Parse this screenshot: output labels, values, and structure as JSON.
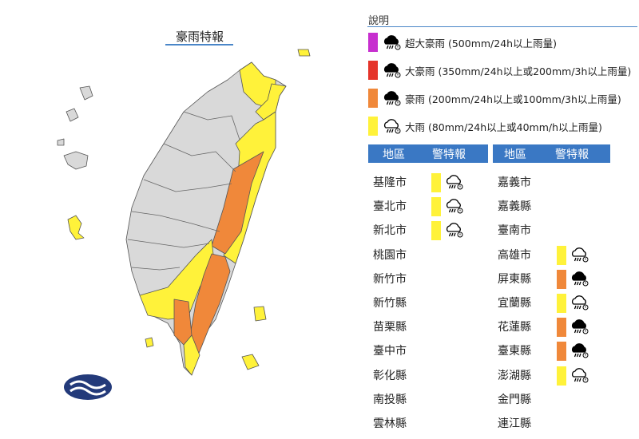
{
  "map": {
    "title": "豪雨特報"
  },
  "colors": {
    "super_torrential": "#c72fcf",
    "extremely_heavy": "#e5342a",
    "heavy_torrential": "#f0883a",
    "heavy_rain": "#fff23a",
    "unaffected": "#d9d9d9",
    "header": "#3a78c4"
  },
  "legend": {
    "title": "說明",
    "items": [
      {
        "level": "super_torrential",
        "icon": "filled-rain-cloud-icon",
        "label": "超大豪雨 (500mm/24h以上雨量)"
      },
      {
        "level": "extremely_heavy",
        "icon": "filled-rain-cloud-icon",
        "label": "大豪雨 (350mm/24h以上或200mm/3h以上雨量)"
      },
      {
        "level": "heavy_torrential",
        "icon": "filled-rain-cloud-icon",
        "label": "豪雨 (200mm/24h以上或100mm/3h以上雨量)"
      },
      {
        "level": "heavy_rain",
        "icon": "outline-rain-cloud-icon",
        "label": "大雨 (80mm/24h以上或40mm/h以上雨量)"
      }
    ]
  },
  "table": {
    "headers": {
      "region": "地區",
      "warning": "警特報"
    },
    "left": [
      {
        "name": "基隆市",
        "level": "heavy_rain"
      },
      {
        "name": "臺北市",
        "level": "heavy_rain"
      },
      {
        "name": "新北市",
        "level": "heavy_rain"
      },
      {
        "name": "桃園市",
        "level": null
      },
      {
        "name": "新竹市",
        "level": null
      },
      {
        "name": "新竹縣",
        "level": null
      },
      {
        "name": "苗栗縣",
        "level": null
      },
      {
        "name": "臺中市",
        "level": null
      },
      {
        "name": "彰化縣",
        "level": null
      },
      {
        "name": "南投縣",
        "level": null
      },
      {
        "name": "雲林縣",
        "level": null
      }
    ],
    "right": [
      {
        "name": "嘉義市",
        "level": null
      },
      {
        "name": "嘉義縣",
        "level": null
      },
      {
        "name": "臺南市",
        "level": null
      },
      {
        "name": "高雄市",
        "level": "heavy_rain"
      },
      {
        "name": "屏東縣",
        "level": "heavy_torrential"
      },
      {
        "name": "宜蘭縣",
        "level": "heavy_rain"
      },
      {
        "name": "花蓮縣",
        "level": "heavy_torrential"
      },
      {
        "name": "臺東縣",
        "level": "heavy_torrential"
      },
      {
        "name": "澎湖縣",
        "level": "heavy_rain"
      },
      {
        "name": "金門縣",
        "level": null
      },
      {
        "name": "連江縣",
        "level": null
      }
    ]
  }
}
